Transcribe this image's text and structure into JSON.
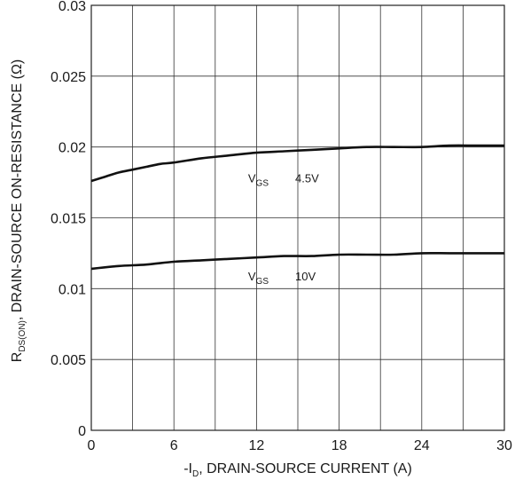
{
  "chart_data": {
    "type": "line",
    "x_axis": {
      "label_prefix": "-I",
      "label_subscript": "D",
      "label_suffix": ", DRAIN-SOURCE CURRENT (A)",
      "range": [
        0,
        30
      ],
      "ticks": [
        0,
        6,
        12,
        18,
        24,
        30
      ],
      "tick_labels": [
        "0",
        "6",
        "12",
        "18",
        "24",
        "30"
      ]
    },
    "y_axis": {
      "label_prefix": "R",
      "label_subscript": "DS(ON)",
      "label_suffix": ", DRAIN-SOURCE ON-RESISTANCE (Ω)",
      "range": [
        0,
        0.03
      ],
      "ticks": [
        0,
        0.005,
        0.01,
        0.015,
        0.02,
        0.025,
        0.03
      ],
      "tick_labels": [
        "0",
        "0.005",
        "0.01",
        "0.015",
        "0.02",
        "0.025",
        "0.03"
      ]
    },
    "grid": {
      "vertical_lines": [
        0,
        3,
        6,
        9,
        12,
        15,
        18,
        21,
        24,
        27,
        30
      ],
      "horizontal_lines": [
        0,
        0.005,
        0.01,
        0.015,
        0.02,
        0.025,
        0.03
      ]
    },
    "series": [
      {
        "annotation": {
          "prefix": "V",
          "subscript": "GS",
          "value": "4.5V",
          "x": 15,
          "y": 0.0175
        },
        "color": "#111111",
        "points": [
          [
            0,
            0.0176
          ],
          [
            1,
            0.0179
          ],
          [
            2,
            0.0182
          ],
          [
            3,
            0.0184
          ],
          [
            4,
            0.0186
          ],
          [
            5,
            0.0188
          ],
          [
            6,
            0.0189
          ],
          [
            8,
            0.0192
          ],
          [
            10,
            0.0194
          ],
          [
            12,
            0.0196
          ],
          [
            14,
            0.0197
          ],
          [
            16,
            0.0198
          ],
          [
            18,
            0.0199
          ],
          [
            20,
            0.02
          ],
          [
            22,
            0.02
          ],
          [
            24,
            0.02
          ],
          [
            26,
            0.0201
          ],
          [
            28,
            0.0201
          ],
          [
            30,
            0.0201
          ]
        ]
      },
      {
        "annotation": {
          "prefix": "V",
          "subscript": "GS",
          "value": "10V",
          "x": 15,
          "y": 0.0106
        },
        "color": "#111111",
        "points": [
          [
            0,
            0.0114
          ],
          [
            2,
            0.0116
          ],
          [
            4,
            0.0117
          ],
          [
            6,
            0.0119
          ],
          [
            8,
            0.012
          ],
          [
            10,
            0.0121
          ],
          [
            12,
            0.0122
          ],
          [
            14,
            0.0123
          ],
          [
            16,
            0.0123
          ],
          [
            18,
            0.0124
          ],
          [
            20,
            0.0124
          ],
          [
            22,
            0.0124
          ],
          [
            24,
            0.0125
          ],
          [
            26,
            0.0125
          ],
          [
            28,
            0.0125
          ],
          [
            30,
            0.0125
          ]
        ]
      }
    ]
  }
}
